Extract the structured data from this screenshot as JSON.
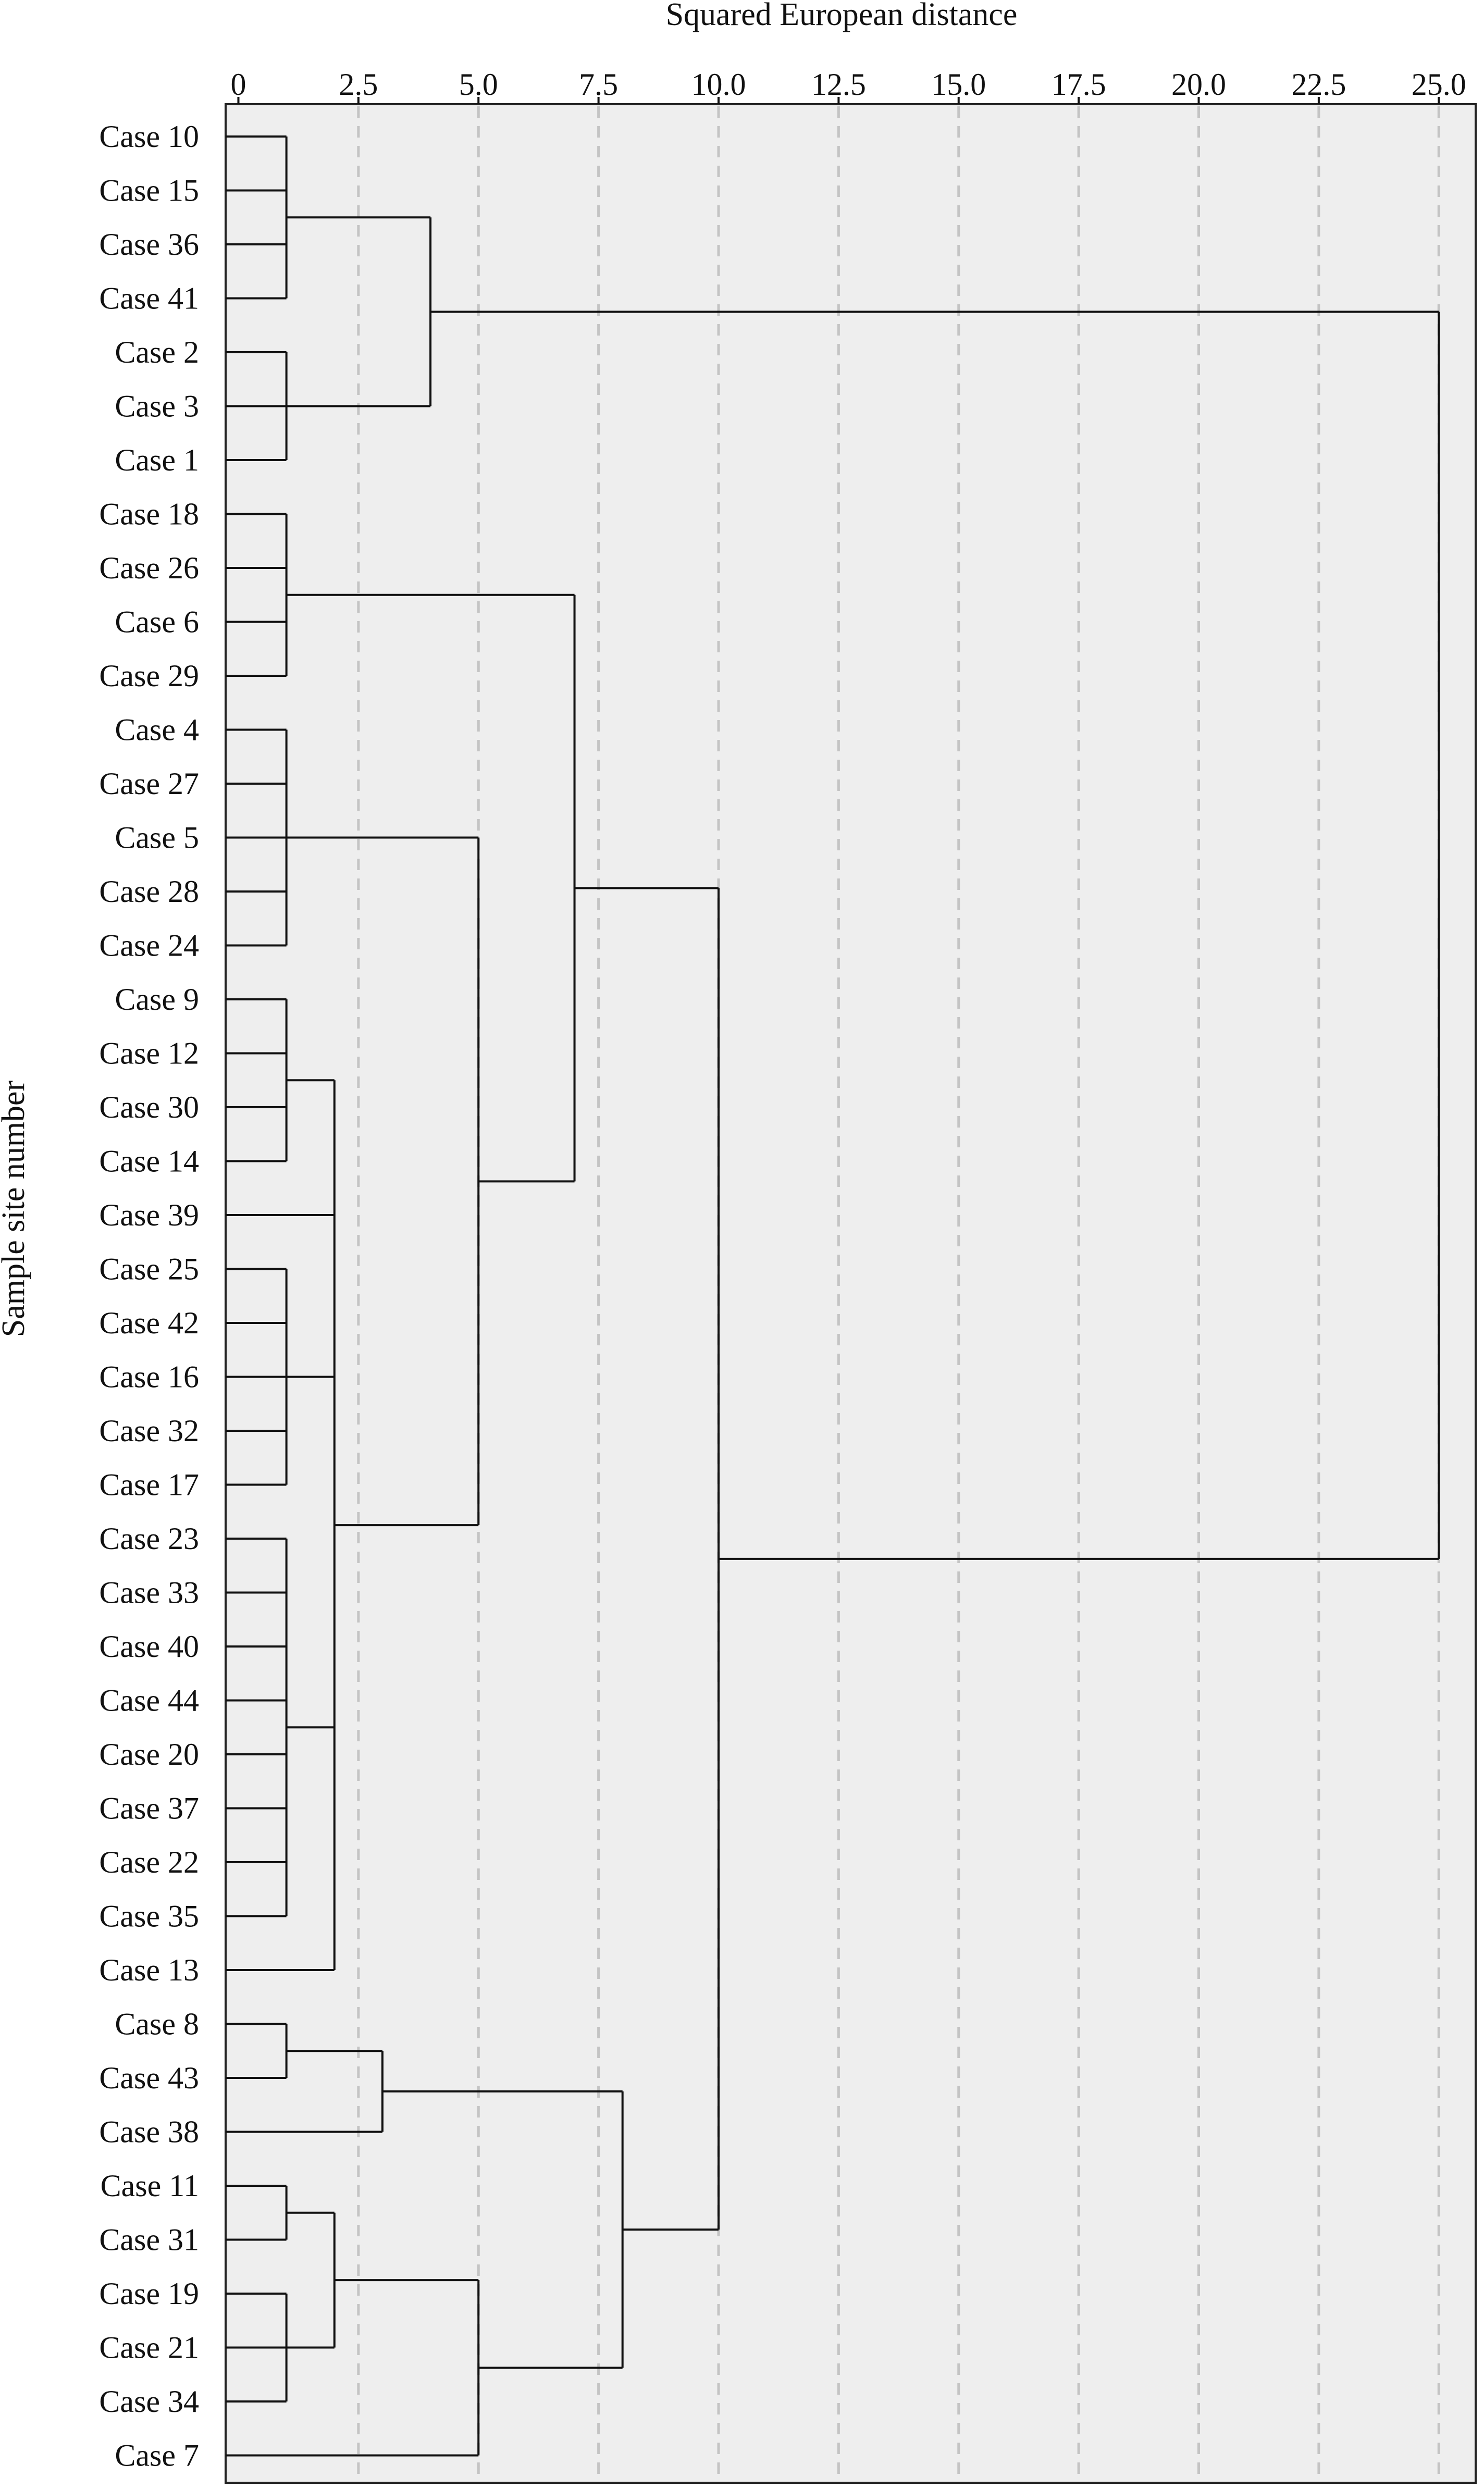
{
  "chart_data": {
    "type": "dendrogram",
    "xlabel": "Squared European distance",
    "ylabel": "Sample site number",
    "xlim": [
      0,
      25
    ],
    "x_ticks": [
      "0",
      "2.5",
      "5.0",
      "7.5",
      "10.0",
      "12.5",
      "15.0",
      "17.5",
      "20.0",
      "22.5",
      "25.0"
    ],
    "x_tick_values": [
      0,
      2.5,
      5,
      7.5,
      10,
      12.5,
      15,
      17.5,
      20,
      22.5,
      25
    ],
    "grid": "vertical dashed lines at each tick",
    "leaves": [
      "Case 10",
      "Case 15",
      "Case 36",
      "Case 41",
      "Case 2",
      "Case 3",
      "Case 1",
      "Case 18",
      "Case 26",
      "Case 6",
      "Case 29",
      "Case 4",
      "Case 27",
      "Case 5",
      "Case 28",
      "Case 24",
      "Case 9",
      "Case 12",
      "Case 30",
      "Case 14",
      "Case 39",
      "Case 25",
      "Case 42",
      "Case 16",
      "Case 32",
      "Case 17",
      "Case 23",
      "Case 33",
      "Case 40",
      "Case 44",
      "Case 20",
      "Case 37",
      "Case 22",
      "Case 35",
      "Case 13",
      "Case 8",
      "Case 43",
      "Case 38",
      "Case 11",
      "Case 31",
      "Case 19",
      "Case 21",
      "Case 34",
      "Case 7"
    ],
    "merges": [
      {
        "id": "A",
        "children": [
          "Case 10",
          "Case 15",
          "Case 36",
          "Case 41"
        ],
        "distance": 1.0
      },
      {
        "id": "B",
        "children": [
          "Case 2",
          "Case 3",
          "Case 1"
        ],
        "distance": 1.0
      },
      {
        "id": "C",
        "children": [
          "A",
          "B"
        ],
        "distance": 4.0
      },
      {
        "id": "D",
        "children": [
          "Case 18",
          "Case 26",
          "Case 6",
          "Case 29"
        ],
        "distance": 1.0
      },
      {
        "id": "E",
        "children": [
          "Case 4",
          "Case 27",
          "Case 5",
          "Case 28",
          "Case 24"
        ],
        "distance": 1.0
      },
      {
        "id": "F",
        "children": [
          "Case 9",
          "Case 12",
          "Case 30",
          "Case 14"
        ],
        "distance": 1.0
      },
      {
        "id": "G",
        "children": [
          "Case 25",
          "Case 42",
          "Case 16",
          "Case 32",
          "Case 17"
        ],
        "distance": 1.0
      },
      {
        "id": "H",
        "children": [
          "Case 23",
          "Case 33",
          "Case 40",
          "Case 44",
          "Case 20",
          "Case 37",
          "Case 22",
          "Case 35"
        ],
        "distance": 1.0
      },
      {
        "id": "I",
        "children": [
          "F",
          "Case 39",
          "G",
          "H",
          "Case 13"
        ],
        "distance": 2.0
      },
      {
        "id": "J",
        "children": [
          "E",
          "I"
        ],
        "distance": 5.0
      },
      {
        "id": "K",
        "children": [
          "D",
          "J"
        ],
        "distance": 7.0
      },
      {
        "id": "L",
        "children": [
          "Case 8",
          "Case 43"
        ],
        "distance": 1.0
      },
      {
        "id": "M",
        "children": [
          "L",
          "Case 38"
        ],
        "distance": 3.0
      },
      {
        "id": "N",
        "children": [
          "Case 11",
          "Case 31"
        ],
        "distance": 1.0
      },
      {
        "id": "O",
        "children": [
          "Case 19",
          "Case 21",
          "Case 34"
        ],
        "distance": 1.0
      },
      {
        "id": "P",
        "children": [
          "N",
          "O"
        ],
        "distance": 2.0
      },
      {
        "id": "Q",
        "children": [
          "P",
          "Case 7"
        ],
        "distance": 5.0
      },
      {
        "id": "R",
        "children": [
          "M",
          "Q"
        ],
        "distance": 8.0
      },
      {
        "id": "S",
        "children": [
          "K",
          "R"
        ],
        "distance": 10.0
      },
      {
        "id": "T",
        "children": [
          "C",
          "S"
        ],
        "distance": 25.0
      }
    ]
  }
}
